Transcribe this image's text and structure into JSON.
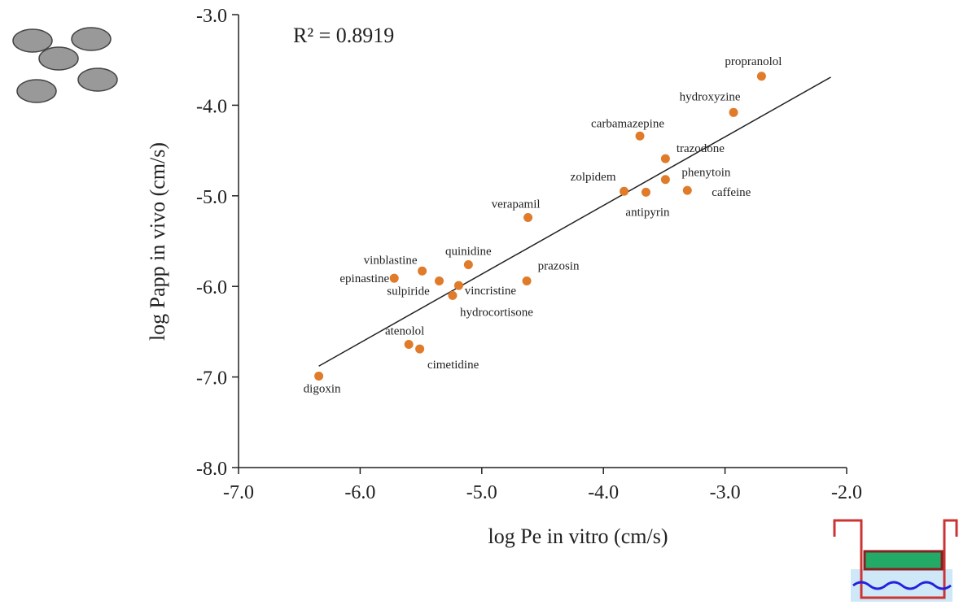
{
  "chart_data": {
    "type": "scatter",
    "xlabel": "log Pe in vitro (cm/s)",
    "ylabel": "log Papp in vivo (cm/s)",
    "annotation": "R² = 0.8919",
    "color": "#e07b2a",
    "point_labels": [
      "propranolol",
      "hydroxyzine",
      "carbamazepine",
      "trazodone",
      "phenytoin",
      "zolpidem",
      "antipyrin",
      "caffeine",
      "verapamil",
      "quinidine",
      "prazosin",
      "vinblastine",
      "epinastine",
      "sulpiride",
      "vincristine",
      "hydrocortisone",
      "atenolol",
      "cimetidine",
      "digoxin"
    ],
    "x": [
      -2.7,
      -2.93,
      -3.7,
      -3.49,
      -3.49,
      -3.83,
      -3.65,
      -3.31,
      -4.62,
      -5.11,
      -4.63,
      -5.49,
      -5.72,
      -5.35,
      -5.19,
      -5.24,
      -5.6,
      -5.51,
      -6.34
    ],
    "values": [
      -3.68,
      -4.08,
      -4.34,
      -4.59,
      -4.82,
      -4.95,
      -4.96,
      -4.94,
      -5.24,
      -5.76,
      -5.94,
      -5.83,
      -5.91,
      -5.94,
      -5.99,
      -6.1,
      -6.64,
      -6.69,
      -6.99
    ],
    "trendline": {
      "x": [
        -6.34,
        -2.13
      ],
      "y": [
        -6.88,
        -3.69
      ]
    },
    "xlim": [
      -7,
      -2
    ],
    "ylim": [
      -8,
      -3
    ],
    "xticks": [
      {
        "value": -7,
        "label": "-7.0"
      },
      {
        "value": -6,
        "label": "-6.0"
      },
      {
        "value": -5,
        "label": "-5.0"
      },
      {
        "value": -4,
        "label": "-4.0"
      },
      {
        "value": -3,
        "label": "-3.0"
      },
      {
        "value": -2,
        "label": "-2.0"
      }
    ],
    "yticks": [
      {
        "value": -8,
        "label": "-8.0"
      },
      {
        "value": -7,
        "label": "-7.0"
      },
      {
        "value": -6,
        "label": "-6.0"
      },
      {
        "value": -5,
        "label": "-5.0"
      },
      {
        "value": -4,
        "label": "-4.0"
      },
      {
        "value": -3,
        "label": "-3.0"
      }
    ]
  }
}
